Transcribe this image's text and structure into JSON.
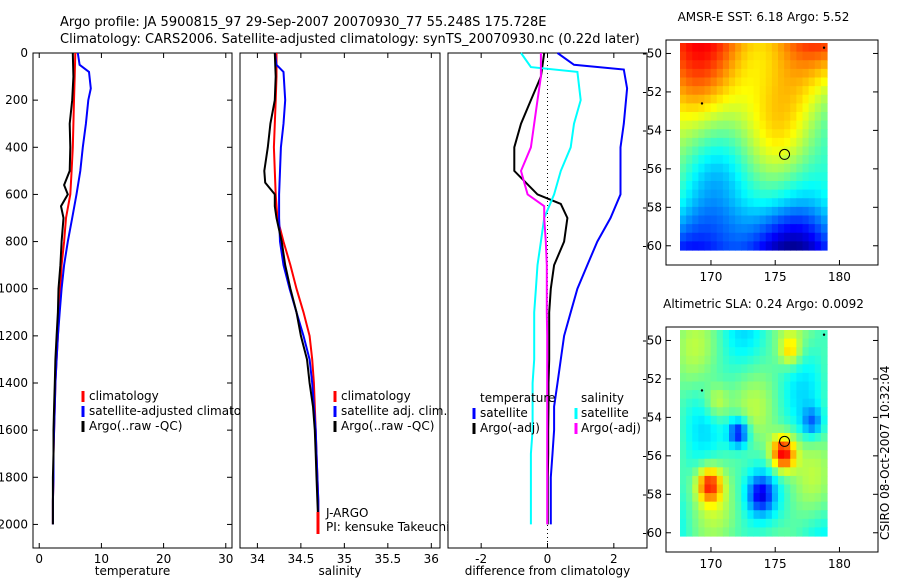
{
  "title_line1": "Argo profile: JA 5900815_97 29-Sep-2007 20070930_77 55.248S 175.728E",
  "title_line2": "Climatology: CARS2006. Satellite-adjusted climatology: synTS_20070930.nc (0.22d later)",
  "colors": {
    "red": "#ff0000",
    "blue": "#0000ff",
    "black": "#000000",
    "cyan": "#00ffff",
    "magenta": "#ff00ff"
  },
  "chart_data": [
    {
      "type": "line",
      "xlabel": "temperature",
      "xlim": [
        -1,
        31
      ],
      "ylim": [
        2100,
        0
      ],
      "xticks": [
        0,
        10,
        20,
        30
      ],
      "yticks": [
        0,
        200,
        400,
        600,
        800,
        1000,
        1200,
        1400,
        1600,
        1800,
        2000
      ],
      "legend": [
        "climatology",
        "satellite-adjusted climatology",
        "Argo(..raw -QC)"
      ],
      "series": [
        {
          "name": "climatology",
          "color": "red",
          "points": [
            [
              5.8,
              0
            ],
            [
              5.7,
              100
            ],
            [
              5.6,
              200
            ],
            [
              5.5,
              300
            ],
            [
              5.4,
              400
            ],
            [
              5.2,
              500
            ],
            [
              5.0,
              600
            ],
            [
              4.3,
              700
            ],
            [
              4.0,
              800
            ],
            [
              3.6,
              900
            ],
            [
              3.4,
              1000
            ],
            [
              3.2,
              1100
            ],
            [
              3.0,
              1200
            ],
            [
              2.8,
              1300
            ],
            [
              2.6,
              1400
            ],
            [
              2.5,
              1500
            ],
            [
              2.4,
              1600
            ],
            [
              2.3,
              1700
            ],
            [
              2.3,
              1800
            ],
            [
              2.2,
              1900
            ],
            [
              2.2,
              2000
            ]
          ]
        },
        {
          "name": "satellite-adjusted climatology",
          "color": "blue",
          "points": [
            [
              6.2,
              0
            ],
            [
              6.5,
              50
            ],
            [
              8.0,
              80
            ],
            [
              8.3,
              150
            ],
            [
              7.9,
              200
            ],
            [
              7.5,
              300
            ],
            [
              7.0,
              400
            ],
            [
              6.6,
              500
            ],
            [
              6.0,
              600
            ],
            [
              5.3,
              700
            ],
            [
              4.6,
              800
            ],
            [
              4.0,
              900
            ],
            [
              3.6,
              1000
            ],
            [
              3.3,
              1100
            ],
            [
              3.0,
              1200
            ],
            [
              2.8,
              1300
            ],
            [
              2.6,
              1400
            ],
            [
              2.5,
              1500
            ],
            [
              2.4,
              1600
            ],
            [
              2.3,
              1700
            ],
            [
              2.3,
              1800
            ],
            [
              2.2,
              1900
            ],
            [
              2.2,
              2000
            ]
          ]
        },
        {
          "name": "Argo(..raw -QC)",
          "color": "black",
          "points": [
            [
              5.4,
              0
            ],
            [
              5.5,
              100
            ],
            [
              5.3,
              200
            ],
            [
              4.9,
              300
            ],
            [
              5.0,
              400
            ],
            [
              4.9,
              500
            ],
            [
              4.0,
              560
            ],
            [
              4.6,
              600
            ],
            [
              3.5,
              650
            ],
            [
              3.9,
              700
            ],
            [
              3.6,
              800
            ],
            [
              3.4,
              900
            ],
            [
              3.1,
              1000
            ],
            [
              3.0,
              1100
            ],
            [
              2.8,
              1200
            ],
            [
              2.6,
              1300
            ],
            [
              2.5,
              1400
            ],
            [
              2.4,
              1500
            ],
            [
              2.3,
              1600
            ],
            [
              2.3,
              1700
            ],
            [
              2.2,
              1800
            ],
            [
              2.2,
              1900
            ],
            [
              2.2,
              2000
            ]
          ]
        }
      ]
    },
    {
      "type": "line",
      "xlabel": "salinity",
      "xlim": [
        33.8,
        36.1
      ],
      "ylim": [
        2100,
        0
      ],
      "xticks": [
        34,
        34.5,
        35,
        35.5,
        36
      ],
      "legend": [
        "climatology",
        "satellite adj. clim.",
        "Argo(..raw -QC)"
      ],
      "annotation": [
        "J-ARGO",
        "PI: kensuke Takeuchi"
      ],
      "series": [
        {
          "name": "climatology",
          "color": "red",
          "points": [
            [
              34.22,
              0
            ],
            [
              34.22,
              100
            ],
            [
              34.21,
              200
            ],
            [
              34.2,
              300
            ],
            [
              34.19,
              400
            ],
            [
              34.2,
              500
            ],
            [
              34.21,
              600
            ],
            [
              34.23,
              700
            ],
            [
              34.3,
              800
            ],
            [
              34.38,
              900
            ],
            [
              34.45,
              1000
            ],
            [
              34.53,
              1100
            ],
            [
              34.6,
              1200
            ],
            [
              34.63,
              1300
            ],
            [
              34.65,
              1400
            ],
            [
              34.66,
              1500
            ],
            [
              34.67,
              1600
            ],
            [
              34.68,
              1700
            ],
            [
              34.69,
              1800
            ],
            [
              34.7,
              1900
            ],
            [
              34.7,
              2000
            ]
          ]
        },
        {
          "name": "satellite adj. clim.",
          "color": "blue",
          "points": [
            [
              34.2,
              0
            ],
            [
              34.22,
              50
            ],
            [
              34.3,
              80
            ],
            [
              34.32,
              200
            ],
            [
              34.3,
              300
            ],
            [
              34.27,
              400
            ],
            [
              34.26,
              500
            ],
            [
              34.25,
              600
            ],
            [
              34.25,
              700
            ],
            [
              34.26,
              800
            ],
            [
              34.3,
              900
            ],
            [
              34.37,
              1000
            ],
            [
              34.45,
              1100
            ],
            [
              34.53,
              1200
            ],
            [
              34.6,
              1300
            ],
            [
              34.63,
              1400
            ],
            [
              34.65,
              1500
            ],
            [
              34.67,
              1600
            ],
            [
              34.68,
              1700
            ],
            [
              34.69,
              1800
            ],
            [
              34.7,
              1900
            ],
            [
              34.7,
              2000
            ]
          ]
        },
        {
          "name": "Argo(..raw -QC)",
          "color": "black",
          "points": [
            [
              34.2,
              0
            ],
            [
              34.21,
              100
            ],
            [
              34.2,
              200
            ],
            [
              34.15,
              300
            ],
            [
              34.12,
              400
            ],
            [
              34.08,
              500
            ],
            [
              34.09,
              550
            ],
            [
              34.2,
              600
            ],
            [
              34.2,
              650
            ],
            [
              34.22,
              700
            ],
            [
              34.28,
              800
            ],
            [
              34.32,
              900
            ],
            [
              34.38,
              1000
            ],
            [
              34.45,
              1100
            ],
            [
              34.5,
              1200
            ],
            [
              34.57,
              1300
            ],
            [
              34.6,
              1400
            ],
            [
              34.64,
              1500
            ],
            [
              34.66,
              1600
            ],
            [
              34.67,
              1700
            ],
            [
              34.68,
              1800
            ],
            [
              34.69,
              1900
            ],
            [
              34.7,
              2000
            ]
          ]
        }
      ]
    },
    {
      "type": "line",
      "xlabel": "difference from climatology",
      "xlim": [
        -3,
        3
      ],
      "ylim": [
        2100,
        0
      ],
      "xticks": [
        -2,
        0,
        2
      ],
      "legend": [
        "temperature",
        "satellite",
        "Argo(-adj)",
        "salinity",
        "satellite",
        "Argo(-adj)"
      ],
      "series": [
        {
          "name": "temperature satellite",
          "color": "blue",
          "points": [
            [
              0.3,
              0
            ],
            [
              0.8,
              50
            ],
            [
              2.3,
              70
            ],
            [
              2.4,
              150
            ],
            [
              2.3,
              300
            ],
            [
              2.2,
              400
            ],
            [
              2.2,
              500
            ],
            [
              2.2,
              600
            ],
            [
              1.9,
              700
            ],
            [
              1.5,
              800
            ],
            [
              1.2,
              900
            ],
            [
              0.9,
              1000
            ],
            [
              0.7,
              1100
            ],
            [
              0.5,
              1200
            ],
            [
              0.4,
              1300
            ],
            [
              0.3,
              1400
            ],
            [
              0.2,
              1500
            ],
            [
              0.2,
              1600
            ],
            [
              0.15,
              1700
            ],
            [
              0.1,
              1800
            ],
            [
              0.1,
              1900
            ],
            [
              0.1,
              2000
            ]
          ]
        },
        {
          "name": "temperature Argo(-adj)",
          "color": "black",
          "points": [
            [
              -0.1,
              0
            ],
            [
              -0.2,
              100
            ],
            [
              -0.5,
              200
            ],
            [
              -0.8,
              300
            ],
            [
              -1.0,
              400
            ],
            [
              -1.0,
              500
            ],
            [
              -0.3,
              600
            ],
            [
              0.4,
              640
            ],
            [
              0.6,
              700
            ],
            [
              0.5,
              800
            ],
            [
              0.2,
              900
            ],
            [
              0.1,
              1000
            ],
            [
              0.05,
              1100
            ],
            [
              0.05,
              1200
            ],
            [
              0.05,
              1300
            ],
            [
              0.03,
              1400
            ],
            [
              0.03,
              1500
            ],
            [
              0.02,
              1600
            ],
            [
              0.02,
              1700
            ],
            [
              0.01,
              1800
            ],
            [
              0.01,
              1900
            ],
            [
              0.01,
              2000
            ]
          ]
        },
        {
          "name": "salinity satellite",
          "color": "cyan",
          "points": [
            [
              -0.8,
              0
            ],
            [
              -0.5,
              60
            ],
            [
              0.9,
              80
            ],
            [
              1.0,
              200
            ],
            [
              0.8,
              300
            ],
            [
              0.7,
              400
            ],
            [
              0.4,
              500
            ],
            [
              0.2,
              600
            ],
            [
              -0.1,
              700
            ],
            [
              -0.2,
              800
            ],
            [
              -0.3,
              900
            ],
            [
              -0.35,
              1000
            ],
            [
              -0.4,
              1100
            ],
            [
              -0.4,
              1200
            ],
            [
              -0.4,
              1300
            ],
            [
              -0.45,
              1400
            ],
            [
              -0.45,
              1500
            ],
            [
              -0.45,
              1600
            ],
            [
              -0.5,
              1700
            ],
            [
              -0.5,
              1800
            ],
            [
              -0.5,
              1900
            ],
            [
              -0.5,
              2000
            ]
          ]
        },
        {
          "name": "salinity Argo(-adj)",
          "color": "magenta",
          "points": [
            [
              -0.2,
              0
            ],
            [
              -0.2,
              100
            ],
            [
              -0.3,
              200
            ],
            [
              -0.4,
              300
            ],
            [
              -0.5,
              400
            ],
            [
              -0.8,
              500
            ],
            [
              -0.6,
              600
            ],
            [
              -0.1,
              650
            ],
            [
              -0.1,
              700
            ],
            [
              -0.05,
              800
            ],
            [
              -0.02,
              900
            ],
            [
              -0.02,
              1000
            ],
            [
              -0.02,
              1100
            ],
            [
              -0.01,
              1200
            ],
            [
              -0.01,
              1300
            ],
            [
              -0.01,
              1400
            ],
            [
              -0.01,
              1500
            ],
            [
              -0.01,
              1600
            ],
            [
              -0.01,
              1700
            ],
            [
              -0.01,
              1800
            ],
            [
              -0.01,
              1900
            ],
            [
              -0.01,
              2000
            ]
          ]
        }
      ]
    },
    {
      "type": "heatmap",
      "title": "AMSR-E SST: 6.18 Argo: 5.52",
      "xlim": [
        166.5,
        183
      ],
      "ylim": [
        -61,
        -49.3
      ],
      "xticks": [
        170,
        175,
        180
      ],
      "yticks": [
        -50,
        -52,
        -54,
        -56,
        -58,
        -60
      ],
      "marker": [
        175.728,
        -55.248
      ]
    },
    {
      "type": "heatmap",
      "title": "Altimetric SLA: 0.24 Argo: 0.0092",
      "xlim": [
        166.5,
        183
      ],
      "ylim": [
        -61,
        -49.3
      ],
      "xticks": [
        170,
        175,
        180
      ],
      "yticks": [
        -50,
        -52,
        -54,
        -56,
        -58,
        -60
      ],
      "marker": [
        175.728,
        -55.248
      ]
    }
  ],
  "side_label": "CSIRO 08-Oct-2007 10:32:04"
}
